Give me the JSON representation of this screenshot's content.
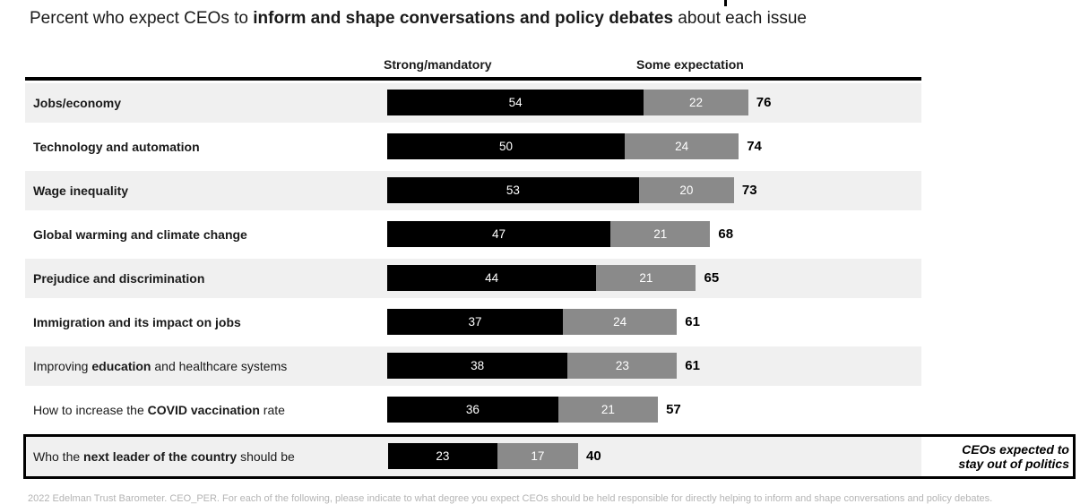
{
  "title": {
    "prefix": "Percent who expect CEOs to ",
    "bold": "inform and shape conversations and policy debates",
    "suffix": " about each issue"
  },
  "columns": {
    "strong_label": "Strong/mandatory",
    "some_label": "Some expectation"
  },
  "callout": {
    "line1": "CEOs expected to",
    "line2": "stay out of politics"
  },
  "footer": "2022 Edelman Trust Barometer. CEO_PER. For each of the following, please indicate to what degree you expect CEOs should be held responsible for directly helping to inform and shape conversations and policy debates.",
  "colors": {
    "strong_bar": "#000000",
    "some_bar": "#8a8a8a",
    "row_shaded_bg": "#f0f0f0",
    "bar_value_text": "#ffffff",
    "total_text": "#000000",
    "footer_text": "#b4b4b4"
  },
  "chart_data": {
    "type": "bar",
    "orientation": "horizontal",
    "stacked": true,
    "title": "Percent who expect CEOs to inform and shape conversations and policy debates about each issue",
    "series_names": [
      "Strong/mandatory",
      "Some expectation"
    ],
    "xlim": [
      0,
      100
    ],
    "unit": "percent",
    "legend_position": "top",
    "grid": false,
    "rows": [
      {
        "label_parts": [
          {
            "t": "Jobs/economy",
            "b": true
          }
        ],
        "strong": 54,
        "some": 22,
        "total": 76,
        "shaded": true,
        "highlight": false
      },
      {
        "label_parts": [
          {
            "t": "Technology and automation",
            "b": true
          }
        ],
        "strong": 50,
        "some": 24,
        "total": 74,
        "shaded": false,
        "highlight": false
      },
      {
        "label_parts": [
          {
            "t": "Wage inequality",
            "b": true
          }
        ],
        "strong": 53,
        "some": 20,
        "total": 73,
        "shaded": true,
        "highlight": false
      },
      {
        "label_parts": [
          {
            "t": "Global warming and climate change",
            "b": true
          }
        ],
        "strong": 47,
        "some": 21,
        "total": 68,
        "shaded": false,
        "highlight": false
      },
      {
        "label_parts": [
          {
            "t": "Prejudice and discrimination",
            "b": true
          }
        ],
        "strong": 44,
        "some": 21,
        "total": 65,
        "shaded": true,
        "highlight": false
      },
      {
        "label_parts": [
          {
            "t": "Immigration and its impact on jobs",
            "b": true
          }
        ],
        "strong": 37,
        "some": 24,
        "total": 61,
        "shaded": false,
        "highlight": false
      },
      {
        "label_parts": [
          {
            "t": "Improving ",
            "b": false
          },
          {
            "t": "education",
            "b": true
          },
          {
            "t": " and healthcare systems",
            "b": false
          }
        ],
        "strong": 38,
        "some": 23,
        "total": 61,
        "shaded": true,
        "highlight": false
      },
      {
        "label_parts": [
          {
            "t": "How to increase the ",
            "b": false
          },
          {
            "t": "COVID vaccination",
            "b": true
          },
          {
            "t": " rate",
            "b": false
          }
        ],
        "strong": 36,
        "some": 21,
        "total": 57,
        "shaded": false,
        "highlight": false
      },
      {
        "label_parts": [
          {
            "t": "Who the ",
            "b": false
          },
          {
            "t": "next leader of the country",
            "b": true
          },
          {
            "t": " should be",
            "b": false
          }
        ],
        "strong": 23,
        "some": 17,
        "total": 40,
        "shaded": true,
        "highlight": true
      }
    ]
  }
}
